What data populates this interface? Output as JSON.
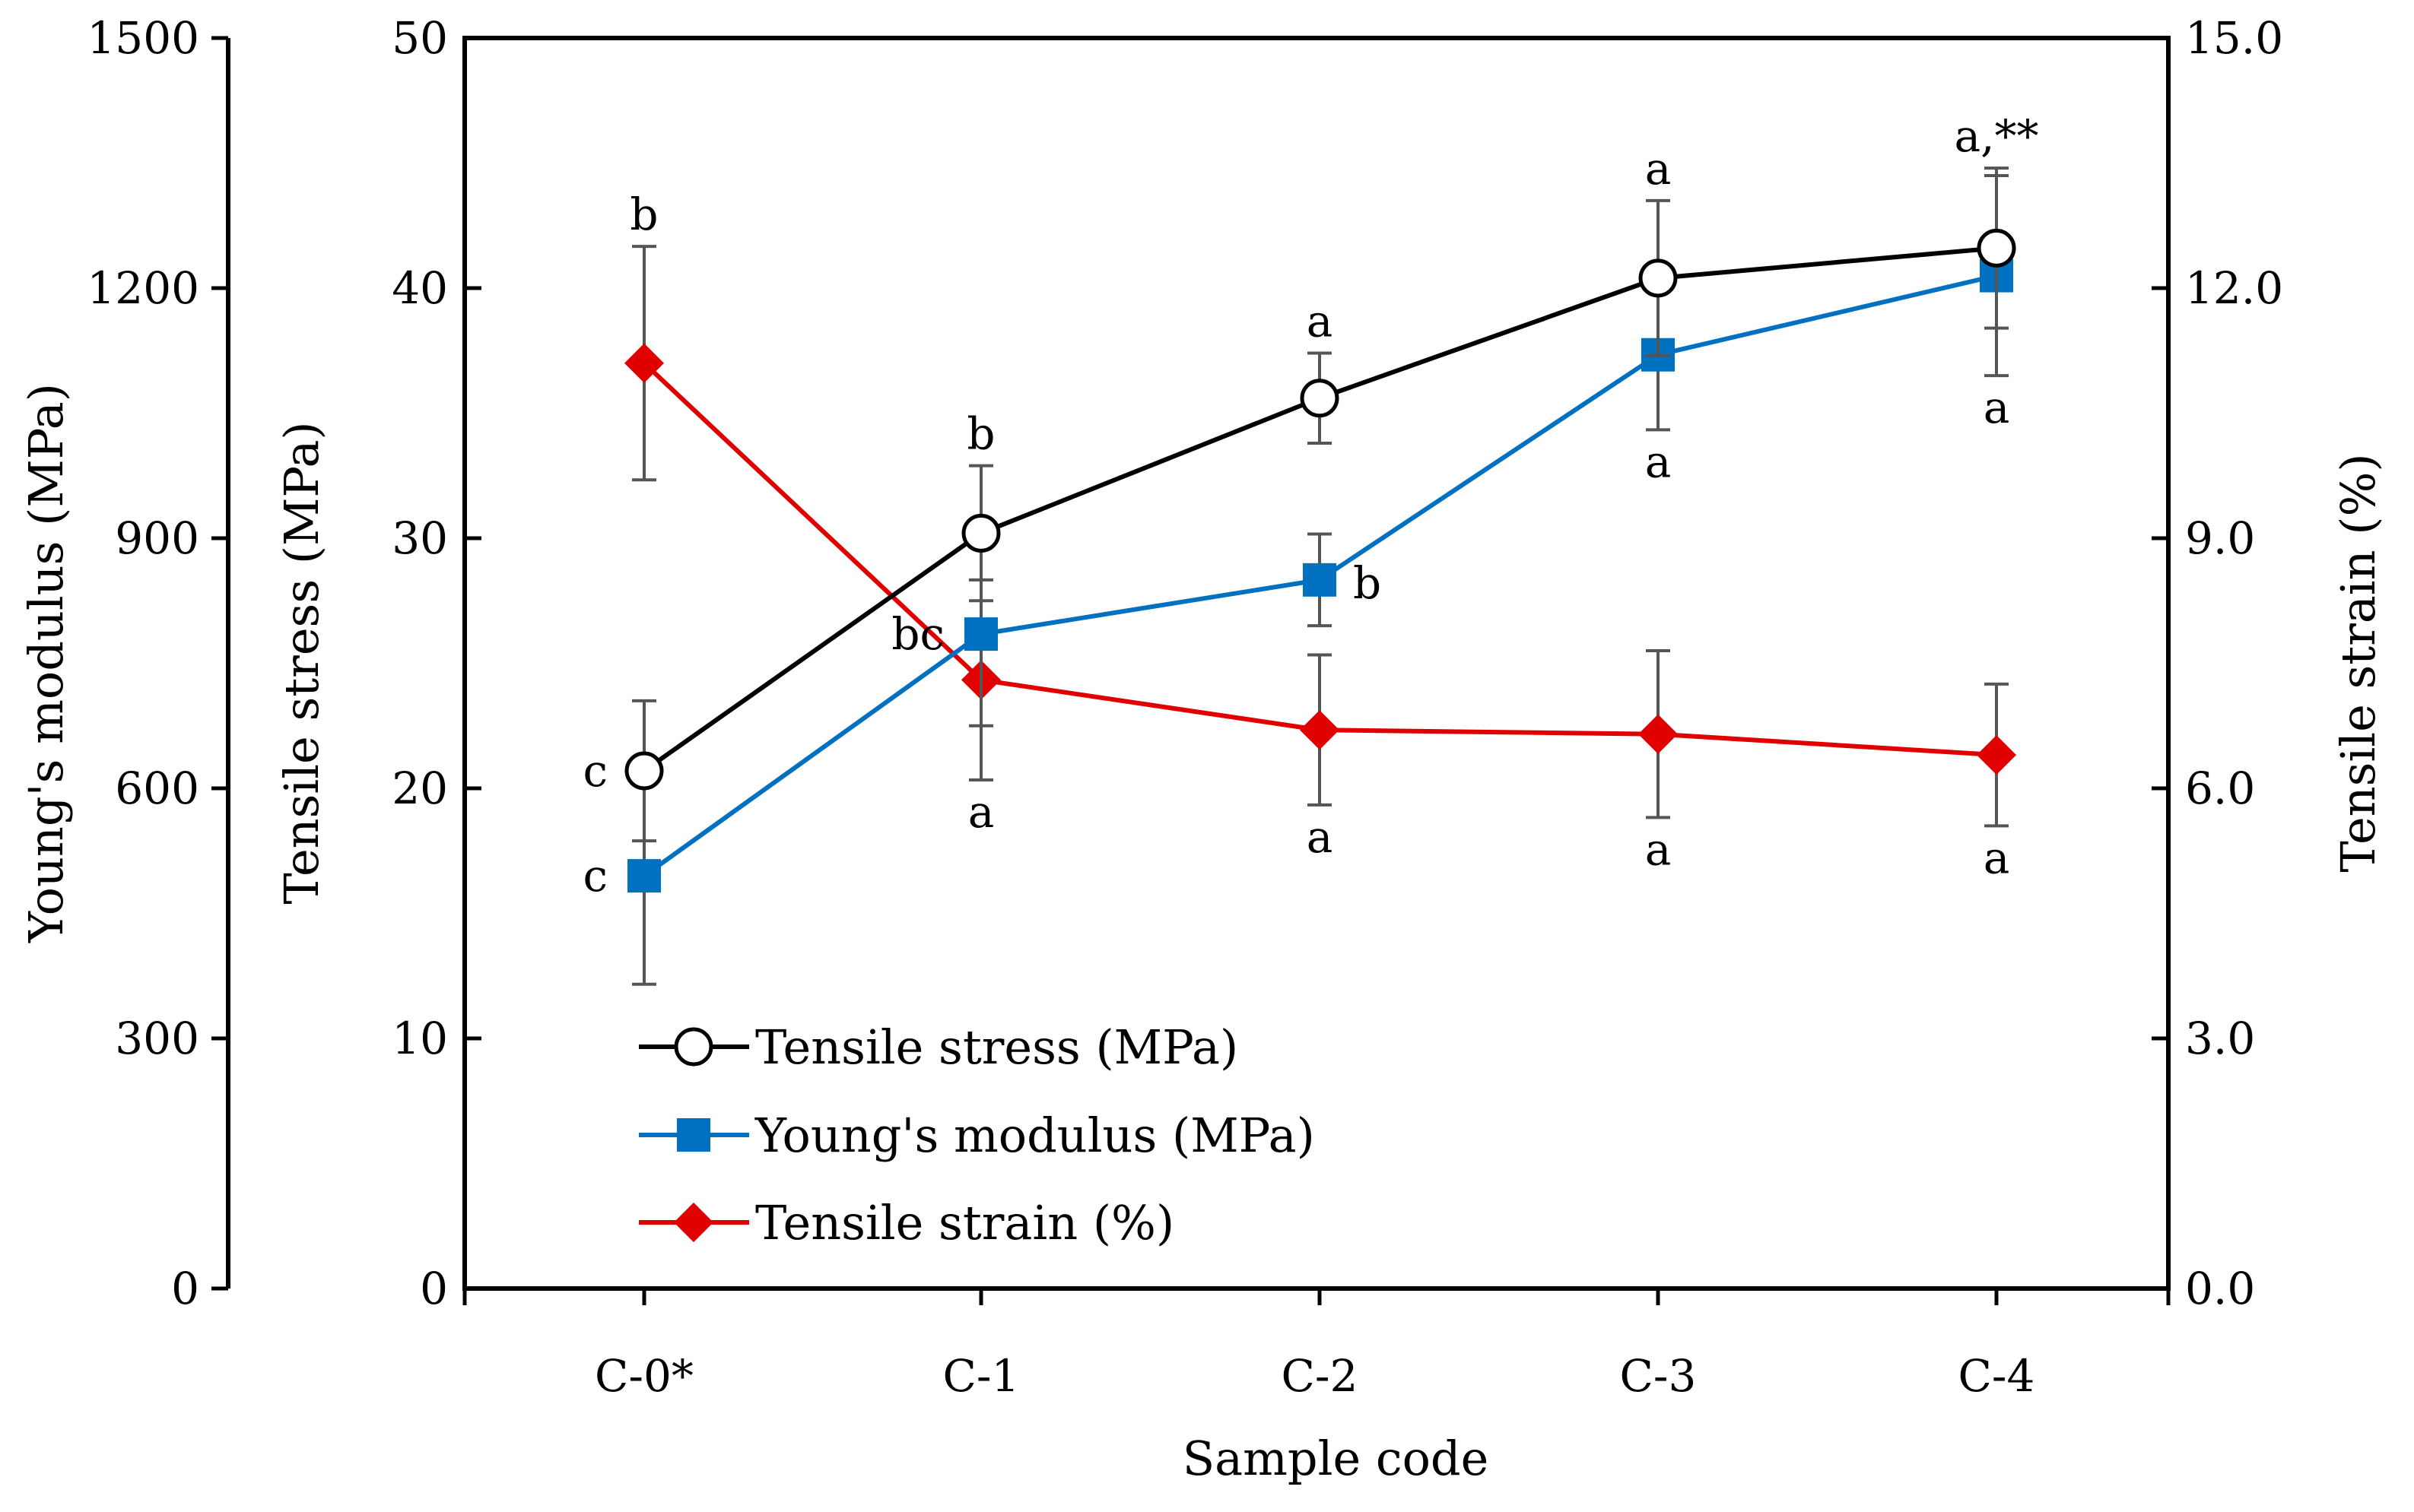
{
  "chart_data": {
    "type": "line",
    "xlabel": "Sample code",
    "categories": [
      "C-0*",
      "C-1",
      "C-2",
      "C-3",
      "C-4"
    ],
    "axes": {
      "youngs_modulus": {
        "label": "Young's modulus (MPa)",
        "range": [
          0,
          1500
        ],
        "ticks": [
          "0",
          "300",
          "600",
          "900",
          "1200",
          "1500"
        ]
      },
      "tensile_stress": {
        "label": "Tensile stress (MPa)",
        "range": [
          0,
          50
        ],
        "ticks": [
          "0",
          "10",
          "20",
          "30",
          "40",
          "50"
        ]
      },
      "tensile_strain": {
        "label": "Tensile strain (%)",
        "range": [
          0,
          15
        ],
        "ticks": [
          "0.0",
          "3.0",
          "6.0",
          "9.0",
          "12.0",
          "15.0"
        ]
      }
    },
    "series": [
      {
        "name": "Tensile stress (MPa)",
        "axis": "tensile_stress",
        "color": "#000000",
        "marker": "open-circle",
        "values": [
          20.7,
          30.2,
          35.6,
          40.4,
          41.6
        ],
        "errors": [
          2.8,
          2.7,
          1.8,
          3.1,
          3.2
        ],
        "labels": [
          "c",
          "b",
          "a",
          "a",
          "a,**"
        ],
        "label_pos": [
          "left",
          "above",
          "above",
          "above",
          "above"
        ]
      },
      {
        "name": "Young's modulus (MPa)",
        "axis": "youngs_modulus",
        "color": "#0070C0",
        "marker": "square",
        "values": [
          495,
          785,
          850,
          1120,
          1215
        ],
        "errors": [
          130,
          110,
          55,
          90,
          120
        ],
        "labels": [
          "c",
          "bc",
          "b",
          "a",
          "a"
        ],
        "label_pos": [
          "left",
          "left",
          "right",
          "below",
          "below"
        ]
      },
      {
        "name": "Tensile strain (%)",
        "axis": "tensile_strain",
        "color": "#E00000",
        "marker": "diamond",
        "values": [
          11.1,
          7.3,
          6.7,
          6.65,
          6.4
        ],
        "errors": [
          1.4,
          1.2,
          0.9,
          1.0,
          0.85
        ],
        "labels": [
          "b",
          "a",
          "a",
          "a",
          "a"
        ],
        "label_pos": [
          "above",
          "below",
          "below",
          "below",
          "below"
        ]
      }
    ],
    "legend": {
      "placement": "bottom-left",
      "entries": [
        "Tensile stress (MPa)",
        "Young's modulus (MPa)",
        "Tensile strain (%)"
      ]
    }
  }
}
